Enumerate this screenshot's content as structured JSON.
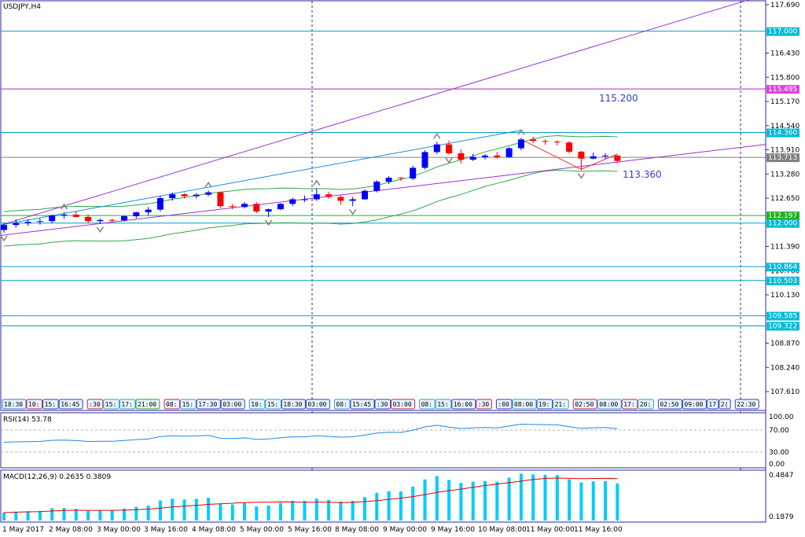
{
  "main": {
    "title": "USDJPY,H4",
    "ann_upper": "115.200",
    "ann_lower": "113.360"
  },
  "price_axis": {
    "ticks": [
      "117.690",
      "116.430",
      "115.800",
      "115.170",
      "114.540",
      "113.910",
      "113.280",
      "112.650",
      "111.390",
      "110.760",
      "110.130",
      "108.870",
      "108.240",
      "107.610"
    ]
  },
  "hlines": [
    {
      "price": 117.0,
      "label": "117.000",
      "color": "#00a0c0",
      "tag_bg": "#00bcd4"
    },
    {
      "price": 115.495,
      "label": "115.495",
      "color": "#c020c0",
      "tag_bg": "#e040e0"
    },
    {
      "price": 114.36,
      "label": "114.360",
      "color": "#00a0c0",
      "tag_bg": "#00bcd4"
    },
    {
      "price": 113.713,
      "label": "113.713",
      "color": "#808080",
      "tag_bg": "#808080"
    },
    {
      "price": 112.197,
      "label": "112.197",
      "color": "#20b020",
      "tag_bg": "#20b020"
    },
    {
      "price": 112.0,
      "label": "112.000",
      "color": "#00a0c0",
      "tag_bg": "#00bcd4"
    },
    {
      "price": 110.864,
      "label": "110.864",
      "color": "#00a0c0",
      "tag_bg": "#00bcd4"
    },
    {
      "price": 110.503,
      "label": "110.503",
      "color": "#00a0c0",
      "tag_bg": "#00bcd4"
    },
    {
      "price": 109.585,
      "label": "109.585",
      "color": "#00a0c0",
      "tag_bg": "#00bcd4"
    },
    {
      "price": 109.322,
      "label": "109.322",
      "color": "#00a0c0",
      "tag_bg": "#00bcd4"
    }
  ],
  "timeline_labels": [
    {
      "text": "18:30",
      "color": "#2e7bd6"
    },
    {
      "text": "10:",
      "color": "#c02050"
    },
    {
      "text": "15:",
      "color": "#3040c0"
    },
    {
      "text": "16:45",
      "color": "#3040c0"
    },
    {
      "text": ":30",
      "color": "#c02050"
    },
    {
      "text": "15:",
      "color": "#2ea0c0"
    },
    {
      "text": "17:",
      "color": "#2ea0c0"
    },
    {
      "text": "21:00",
      "color": "#20a020"
    },
    {
      "text": "08:",
      "color": "#c02050"
    },
    {
      "text": "15:",
      "color": "#2ea0c0"
    },
    {
      "text": "17:30",
      "color": "#3040c0"
    },
    {
      "text": "03:00",
      "color": "#3040c0"
    },
    {
      "text": "10:",
      "color": "#2ea0c0"
    },
    {
      "text": "15:",
      "color": "#2ea0c0"
    },
    {
      "text": "18:30",
      "color": "#3040c0"
    },
    {
      "text": "03:00",
      "color": "#3040c0"
    },
    {
      "text": "08:",
      "color": "#2ea0c0"
    },
    {
      "text": "15:45",
      "color": "#3040c0"
    },
    {
      "text": ":30",
      "color": "#3040c0"
    },
    {
      "text": "03:00",
      "color": "#c02050"
    },
    {
      "text": "08:",
      "color": "#2ea0c0"
    },
    {
      "text": "15:",
      "color": "#2ea0c0"
    },
    {
      "text": "16:00",
      "color": "#3040c0"
    },
    {
      "text": ":30",
      "color": "#c02050"
    },
    {
      "text": ":00",
      "color": "#3040c0"
    },
    {
      "text": "08:00",
      "color": "#2ea0c0"
    },
    {
      "text": "19:",
      "color": "#3040c0"
    },
    {
      "text": "21:",
      "color": "#2ea0c0"
    },
    {
      "text": "02:50",
      "color": "#c02050"
    },
    {
      "text": "08:00",
      "color": "#2ea0c0"
    },
    {
      "text": "17:",
      "color": "#c02050"
    },
    {
      "text": "20:",
      "color": "#2ea0c0"
    },
    {
      "text": "02:50",
      "color": "#3040c0"
    },
    {
      "text": "09:00",
      "color": "#3040c0"
    },
    {
      "text": "17",
      "color": "#3040c0"
    },
    {
      "text": "2(",
      "color": "#3040c0"
    },
    {
      "text": "22:30",
      "color": "#3040c0"
    }
  ],
  "rsi": {
    "title": "RSI(14) 53.78",
    "ticks": [
      "100.00",
      "70.00",
      "30.00",
      "0.00"
    ]
  },
  "macd": {
    "title": "MACD(12,26,9) 0.2635 0.3809",
    "ticks": [
      "0.4847",
      "0.1879"
    ]
  },
  "time_axis": {
    "labels": [
      "1 May 2017",
      "2 May 08:00",
      "3 May 00:00",
      "3 May 16:00",
      "4 May 08:00",
      "5 May 00:00",
      "5 May 16:00",
      "8 May 08:00",
      "9 May 00:00",
      "9 May 16:00",
      "10 May 08:00",
      "11 May 00:00",
      "11 May 16:00"
    ]
  },
  "colors": {
    "bull": "#0000ff",
    "bear": "#ff0000",
    "axis": "#2a2aa0",
    "channel": "#9b30d0",
    "envelope": "#2fa84f",
    "regression": "#1e88e5",
    "macd_hist": "#00ccff",
    "macd_signal": "#e00000",
    "rsi_line": "#1e88e5"
  },
  "chart_data": {
    "type": "candlestick",
    "symbol": "USDJPY",
    "timeframe": "H4",
    "ylim": [
      107.3,
      117.9
    ],
    "candles": [
      {
        "o": 111.82,
        "h": 112.0,
        "l": 111.75,
        "c": 111.95
      },
      {
        "o": 111.95,
        "h": 112.1,
        "l": 111.88,
        "c": 112.0
      },
      {
        "o": 112.0,
        "h": 112.1,
        "l": 111.93,
        "c": 112.03
      },
      {
        "o": 112.03,
        "h": 112.12,
        "l": 111.96,
        "c": 112.05
      },
      {
        "o": 112.05,
        "h": 112.22,
        "l": 112.0,
        "c": 112.2
      },
      {
        "o": 112.2,
        "h": 112.28,
        "l": 112.12,
        "c": 112.22
      },
      {
        "o": 112.22,
        "h": 112.3,
        "l": 112.14,
        "c": 112.16
      },
      {
        "o": 112.16,
        "h": 112.22,
        "l": 112.0,
        "c": 112.05
      },
      {
        "o": 112.05,
        "h": 112.12,
        "l": 111.98,
        "c": 112.08
      },
      {
        "o": 112.08,
        "h": 112.12,
        "l": 112.02,
        "c": 112.07
      },
      {
        "o": 112.07,
        "h": 112.2,
        "l": 112.04,
        "c": 112.18
      },
      {
        "o": 112.18,
        "h": 112.3,
        "l": 112.12,
        "c": 112.28
      },
      {
        "o": 112.28,
        "h": 112.42,
        "l": 112.2,
        "c": 112.35
      },
      {
        "o": 112.35,
        "h": 112.7,
        "l": 112.3,
        "c": 112.65
      },
      {
        "o": 112.65,
        "h": 112.8,
        "l": 112.58,
        "c": 112.75
      },
      {
        "o": 112.75,
        "h": 112.78,
        "l": 112.64,
        "c": 112.7
      },
      {
        "o": 112.7,
        "h": 112.78,
        "l": 112.64,
        "c": 112.74
      },
      {
        "o": 112.74,
        "h": 112.85,
        "l": 112.7,
        "c": 112.8
      },
      {
        "o": 112.8,
        "h": 112.82,
        "l": 112.4,
        "c": 112.44
      },
      {
        "o": 112.44,
        "h": 112.5,
        "l": 112.36,
        "c": 112.42
      },
      {
        "o": 112.42,
        "h": 112.55,
        "l": 112.38,
        "c": 112.5
      },
      {
        "o": 112.5,
        "h": 112.55,
        "l": 112.26,
        "c": 112.3
      },
      {
        "o": 112.3,
        "h": 112.38,
        "l": 112.16,
        "c": 112.36
      },
      {
        "o": 112.36,
        "h": 112.52,
        "l": 112.34,
        "c": 112.5
      },
      {
        "o": 112.5,
        "h": 112.66,
        "l": 112.44,
        "c": 112.62
      },
      {
        "o": 112.62,
        "h": 112.72,
        "l": 112.55,
        "c": 112.62
      },
      {
        "o": 112.62,
        "h": 112.9,
        "l": 112.58,
        "c": 112.75
      },
      {
        "o": 112.75,
        "h": 112.82,
        "l": 112.64,
        "c": 112.68
      },
      {
        "o": 112.68,
        "h": 112.72,
        "l": 112.48,
        "c": 112.58
      },
      {
        "o": 112.58,
        "h": 112.68,
        "l": 112.44,
        "c": 112.62
      },
      {
        "o": 112.62,
        "h": 112.88,
        "l": 112.6,
        "c": 112.84
      },
      {
        "o": 112.84,
        "h": 113.12,
        "l": 112.8,
        "c": 113.08
      },
      {
        "o": 113.08,
        "h": 113.22,
        "l": 113.02,
        "c": 113.18
      },
      {
        "o": 113.18,
        "h": 113.2,
        "l": 113.1,
        "c": 113.16
      },
      {
        "o": 113.16,
        "h": 113.5,
        "l": 113.12,
        "c": 113.44
      },
      {
        "o": 113.44,
        "h": 113.9,
        "l": 113.4,
        "c": 113.85
      },
      {
        "o": 113.85,
        "h": 114.12,
        "l": 113.8,
        "c": 114.05
      },
      {
        "o": 114.05,
        "h": 114.15,
        "l": 113.78,
        "c": 113.82
      },
      {
        "o": 113.82,
        "h": 113.92,
        "l": 113.55,
        "c": 113.65
      },
      {
        "o": 113.65,
        "h": 113.8,
        "l": 113.62,
        "c": 113.72
      },
      {
        "o": 113.72,
        "h": 113.8,
        "l": 113.66,
        "c": 113.76
      },
      {
        "o": 113.76,
        "h": 113.86,
        "l": 113.68,
        "c": 113.72
      },
      {
        "o": 113.72,
        "h": 113.98,
        "l": 113.7,
        "c": 113.95
      },
      {
        "o": 113.95,
        "h": 114.22,
        "l": 113.9,
        "c": 114.18
      },
      {
        "o": 114.18,
        "h": 114.25,
        "l": 114.08,
        "c": 114.14
      },
      {
        "o": 114.14,
        "h": 114.18,
        "l": 114.04,
        "c": 114.12
      },
      {
        "o": 114.12,
        "h": 114.16,
        "l": 114.02,
        "c": 114.1
      },
      {
        "o": 114.1,
        "h": 114.14,
        "l": 113.82,
        "c": 113.86
      },
      {
        "o": 113.86,
        "h": 113.88,
        "l": 113.38,
        "c": 113.68
      },
      {
        "o": 113.68,
        "h": 113.84,
        "l": 113.66,
        "c": 113.74
      },
      {
        "o": 113.74,
        "h": 113.82,
        "l": 113.68,
        "c": 113.76
      },
      {
        "o": 113.76,
        "h": 113.78,
        "l": 113.56,
        "c": 113.62
      }
    ]
  }
}
